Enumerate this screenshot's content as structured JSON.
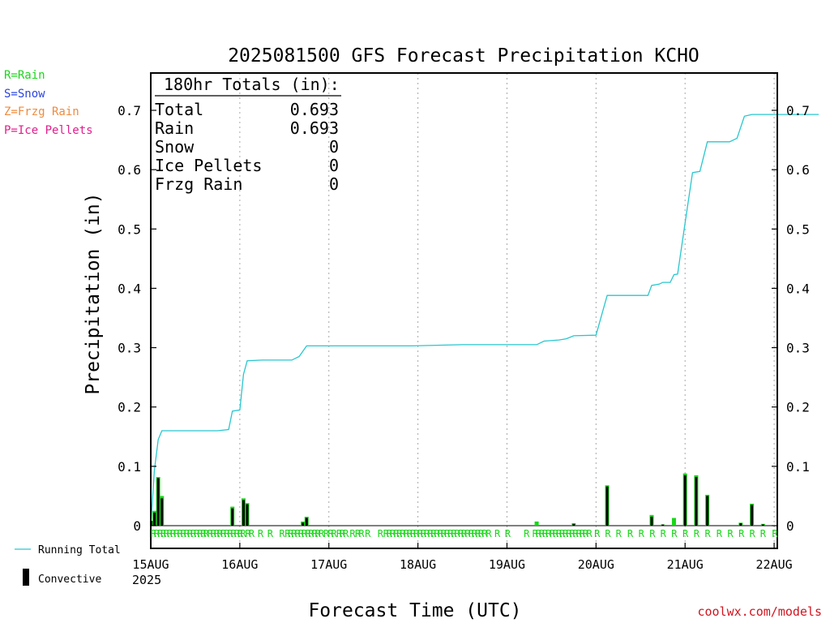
{
  "colors": {
    "running_total": "#27c7cf",
    "convective": "#000000",
    "large_scale": "#19d619",
    "rain_code": "#19d619",
    "legend_rain": "#19d619",
    "legend_snow": "#2b44e0",
    "legend_frzg": "#f08a3c",
    "legend_ice": "#e21d8c",
    "credit": "#d2141e",
    "grid": "#a8a8a8"
  },
  "legend_types": [
    {
      "text": "R=Rain",
      "color": "#19d619"
    },
    {
      "text": "S=Snow",
      "color": "#2b44e0"
    },
    {
      "text": "Z=Frzg Rain",
      "color": "#f08a3c"
    },
    {
      "text": "P=Ice Pellets",
      "color": "#e21d8c"
    }
  ],
  "credit": "coolwx.com/models",
  "chart_data": {
    "type": "line",
    "title": "2025081500 GFS Forecast Precipitation KCHO",
    "xlabel": "Forecast Time (UTC)",
    "ylabel": "Precipitation (in)",
    "ylim": [
      0,
      0.7
    ],
    "xlim": [
      0,
      180
    ],
    "x_unit": "forecast hour",
    "yticks": [
      0,
      0.1,
      0.2,
      0.3,
      0.4,
      0.5,
      0.6,
      0.7
    ],
    "ytick_labels": [
      "0",
      "0.1",
      "0.2",
      "0.3",
      "0.4",
      "0.5",
      "0.6",
      "0.7"
    ],
    "xticks": [
      0,
      24,
      48,
      72,
      96,
      120,
      144,
      168
    ],
    "xtick_labels": [
      "15AUG",
      "16AUG",
      "17AUG",
      "18AUG",
      "19AUG",
      "20AUG",
      "21AUG",
      "22AUG"
    ],
    "year_label": "2025",
    "grid": "vertical dotted at each day",
    "totals_box": {
      "heading": "180hr Totals (in):",
      "rows": [
        {
          "label": "Total",
          "value": "0.693"
        },
        {
          "label": "Rain",
          "value": "0.693"
        },
        {
          "label": "Snow",
          "value": "0"
        },
        {
          "label": "Ice Pellets",
          "value": "0"
        },
        {
          "label": "Frzg Rain",
          "value": "0"
        }
      ]
    },
    "legend": [
      {
        "name": "Running Total",
        "style": "line"
      },
      {
        "name": "Convective",
        "style": "bar"
      }
    ],
    "running_total": {
      "x": [
        0,
        1,
        2,
        3,
        9,
        18,
        21,
        22,
        24,
        25,
        26,
        30,
        38,
        40,
        42,
        60,
        70,
        84,
        96,
        104,
        106,
        110,
        112,
        114,
        120,
        123,
        126,
        134,
        135,
        137,
        138,
        140,
        141,
        142,
        144,
        146,
        148,
        150,
        152,
        156,
        158,
        160,
        162,
        180
      ],
      "y": [
        0.0,
        0.095,
        0.145,
        0.16,
        0.16,
        0.16,
        0.162,
        0.193,
        0.195,
        0.255,
        0.278,
        0.279,
        0.279,
        0.285,
        0.303,
        0.303,
        0.303,
        0.305,
        0.305,
        0.305,
        0.311,
        0.313,
        0.315,
        0.32,
        0.321,
        0.388,
        0.388,
        0.388,
        0.405,
        0.407,
        0.41,
        0.41,
        0.423,
        0.424,
        0.51,
        0.595,
        0.597,
        0.647,
        0.647,
        0.647,
        0.653,
        0.69,
        0.693,
        0.693
      ]
    },
    "precip_bars": {
      "x": [
        0.5,
        1.0,
        2.0,
        3.0,
        22.0,
        25.0,
        26.0,
        41.0,
        42.0,
        104.0,
        114.0,
        123.0,
        135.0,
        138.0,
        141.0,
        144.0,
        147.0,
        150.0,
        159.0,
        162.0,
        165.0
      ],
      "total": [
        0.008,
        0.025,
        0.082,
        0.05,
        0.032,
        0.046,
        0.038,
        0.007,
        0.015,
        0.007,
        0.004,
        0.068,
        0.018,
        0.002,
        0.013,
        0.088,
        0.085,
        0.052,
        0.005,
        0.037,
        0.003
      ],
      "convective": [
        0.008,
        0.022,
        0.08,
        0.046,
        0.029,
        0.043,
        0.036,
        0.005,
        0.013,
        0.0,
        0.003,
        0.066,
        0.015,
        0.002,
        0.0,
        0.085,
        0.082,
        0.05,
        0.004,
        0.035,
        0.002
      ]
    },
    "ptype_codes": {
      "x": [
        0.7,
        1.6,
        2.6,
        3.4,
        4.2,
        5.1,
        6.0,
        7.0,
        7.9,
        8.8,
        9.7,
        10.6,
        11.5,
        12.4,
        13.3,
        14.2,
        14.9,
        16.0,
        16.9,
        17.8,
        18.6,
        19.6,
        20.5,
        21.4,
        22.3,
        23.2,
        24.1,
        24.9,
        26.2,
        27.2,
        29.6,
        32.2,
        35.4,
        36.9,
        37.7,
        38.6,
        39.6,
        40.5,
        41.4,
        42.4,
        43.2,
        44.2,
        45.0,
        46.0,
        47.3,
        48.5,
        49.4,
        50.8,
        51.6,
        52.6,
        54.4,
        55.8,
        56.8,
        58.5,
        61.9,
        63.4,
        64.3,
        65.2,
        66.2,
        67.0,
        67.9,
        68.9,
        69.8,
        70.7,
        71.6,
        72.6,
        73.5,
        74.4,
        75.4,
        76.2,
        77.1,
        78.1,
        78.9,
        79.9,
        80.8,
        81.7,
        82.6,
        83.6,
        84.4,
        85.4,
        86.4,
        87.2,
        88.2,
        89.0,
        90.0,
        91.1,
        93.4,
        96.2,
        101.3,
        103.6,
        104.5,
        105.4,
        106.3,
        107.2,
        108.2,
        109.1,
        110.0,
        110.9,
        111.8,
        112.7,
        113.6,
        114.5,
        115.4,
        116.3,
        117.2,
        118.2,
        120.3,
        123.2,
        126.1,
        129.2,
        132.2,
        135.2,
        138.1,
        141.1,
        144.1,
        147.1,
        150.1,
        153.2,
        156.2,
        159.2,
        162.1,
        165.0,
        168.2,
        180.5,
        183.4
      ],
      "label": "R"
    }
  }
}
